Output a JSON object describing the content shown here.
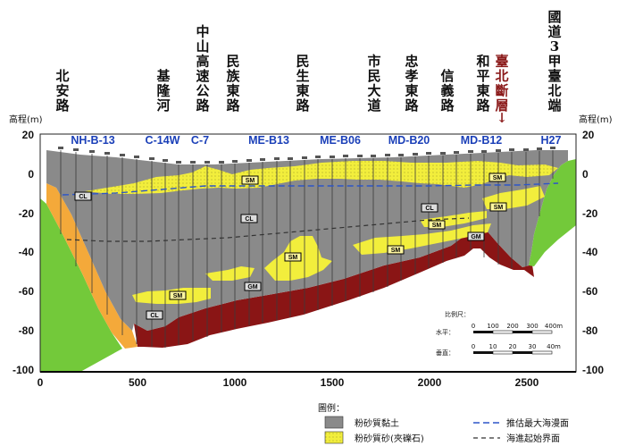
{
  "roads": [
    {
      "text": "北安路",
      "x": 70
    },
    {
      "text": "基隆河",
      "x": 183
    },
    {
      "text": "中山高速公路",
      "x": 227
    },
    {
      "text": "民族東路",
      "x": 261
    },
    {
      "text": "民生東路",
      "x": 339
    },
    {
      "text": "市民大道",
      "x": 419
    },
    {
      "text": "忠孝東路",
      "x": 461
    },
    {
      "text": "信義路",
      "x": 501
    },
    {
      "text": "和平東路",
      "x": 541
    },
    {
      "text": "臺北斷層",
      "x": 562,
      "fault": true
    },
    {
      "text": "國道3甲臺北端",
      "x": 621
    }
  ],
  "fault_arrow": "↓",
  "boreholes": [
    "NH-B-13",
    "C-14W",
    "C-7",
    "ME-B13",
    "ME-B06",
    "MD-B20",
    "MD-B12",
    "H27"
  ],
  "axis": {
    "left_title": "高程(m)",
    "right_title": "高程(m)",
    "y_ticks": [
      "20",
      "0",
      "-20",
      "-40",
      "-60",
      "-80",
      "-100"
    ],
    "x_ticks": [
      "0",
      "500",
      "1000",
      "1500",
      "2000",
      "2500"
    ]
  },
  "soil_labels": {
    "cl_1": "CL",
    "cl_2": "CL",
    "cl_3": "CL",
    "cl_4": "CL",
    "sm_1": "SM",
    "sm_2": "SM",
    "sm_3": "SM",
    "sm_4": "SM",
    "sm_5": "SM",
    "sm_6": "SM",
    "sm_7": "SM",
    "gm_1": "GM",
    "gm_2": "GM"
  },
  "scale": {
    "title": "比例尺：",
    "h_label": "水平：",
    "h_ticks": [
      "0",
      "100",
      "200",
      "300",
      "400m"
    ],
    "v_label": "垂直：",
    "v_ticks": [
      "0",
      "10",
      "20",
      "30",
      "40m"
    ]
  },
  "legend": {
    "title": "圖例：",
    "clay": "粉砂質黏土",
    "sand": "粉砂質砂(夾礫石)",
    "sea_max": "推估最大海漫面",
    "transgression": "海進起始界面"
  },
  "colors": {
    "clay": "#8a8a8a",
    "sand": "#f2ee3c",
    "gravel": "#8a1515",
    "rock": "#73c93a",
    "orange": "#f4a93a",
    "sea": "#2d55c8"
  }
}
